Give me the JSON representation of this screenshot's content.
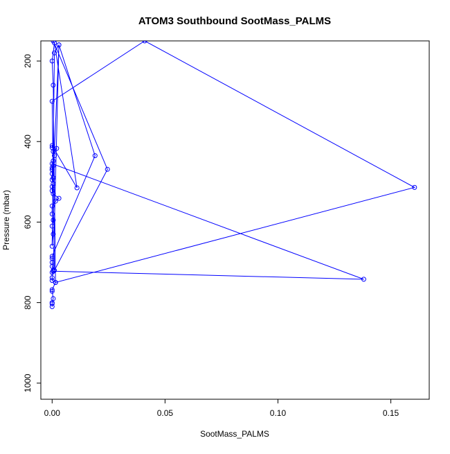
{
  "chart_data": {
    "type": "line",
    "title": "ATOM3 Southbound SootMass_PALMS",
    "xlabel": "SootMass_PALMS",
    "ylabel": "Pressure (mbar)",
    "xlim": [
      -0.005,
      0.167
    ],
    "ylim": [
      1040,
      150
    ],
    "y_reversed": true,
    "grid": false,
    "x_ticks": [
      0.0,
      0.05,
      0.1,
      0.15
    ],
    "x_tick_labels": [
      "0.00",
      "0.05",
      "0.10",
      "0.15"
    ],
    "y_ticks": [
      200,
      400,
      600,
      800,
      1000
    ],
    "y_tick_labels": [
      "200",
      "400",
      "600",
      "800",
      "1000"
    ],
    "series_color": "#0000ff",
    "marker": "open-circle",
    "series": [
      {
        "points": [
          [
            0.0,
            810
          ],
          [
            0.0,
            803
          ],
          [
            0.0,
            800
          ],
          [
            0.0005,
            790
          ],
          [
            0.0,
            772
          ],
          [
            0.0,
            768
          ],
          [
            0.0015,
            750
          ],
          [
            0.0,
            745
          ],
          [
            0.0,
            738
          ],
          [
            0.0,
            725
          ],
          [
            0.0005,
            722
          ],
          [
            0.138,
            742
          ],
          [
            0.0,
            455
          ],
          [
            0.0005,
            460
          ],
          [
            0.0,
            470
          ],
          [
            0.0005,
            490
          ],
          [
            0.003,
            160
          ],
          [
            0.0005,
            720
          ],
          [
            0.0,
            710
          ],
          [
            0.0,
            700
          ],
          [
            0.0,
            690
          ],
          [
            0.0,
            685
          ],
          [
            0.019,
            435
          ],
          [
            0.003,
            160
          ],
          [
            0.001,
            180
          ],
          [
            0.0,
            660
          ],
          [
            0.0005,
            630
          ],
          [
            0.0,
            610
          ],
          [
            0.0005,
            595
          ],
          [
            0.0,
            580
          ],
          [
            0.0,
            560
          ],
          [
            0.0015,
            548
          ],
          [
            0.003,
            541
          ],
          [
            0.0005,
            530
          ],
          [
            0.0,
            522
          ],
          [
            0.0,
            512
          ],
          [
            0.0005,
            505
          ],
          [
            0.0,
            495
          ],
          [
            0.0,
            480
          ],
          [
            0.0,
            470
          ],
          [
            0.0,
            465
          ],
          [
            0.0005,
            448
          ],
          [
            0.001,
            435
          ],
          [
            0.0005,
            425
          ],
          [
            0.002,
            417
          ],
          [
            0.0,
            415
          ],
          [
            0.0,
            410
          ],
          [
            0.011,
            515
          ],
          [
            0.001,
            155
          ],
          [
            0.0,
            200
          ],
          [
            0.0005,
            260
          ],
          [
            0.0015,
            750
          ],
          [
            0.1605,
            514
          ],
          [
            0.041,
            150
          ],
          [
            0.0,
            300
          ],
          [
            0.001,
            720
          ],
          [
            0.0245,
            469
          ],
          [
            0.0005,
            150
          ]
        ]
      }
    ]
  }
}
